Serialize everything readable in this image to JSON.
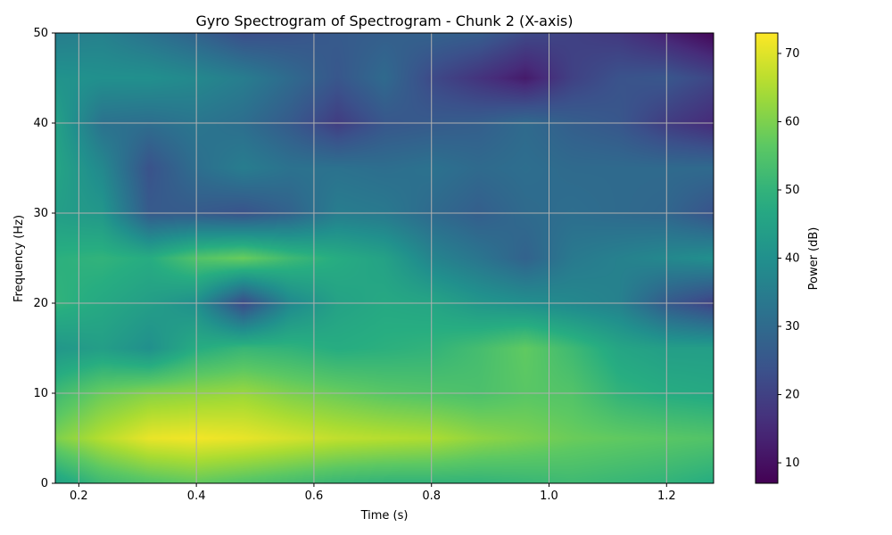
{
  "chart_data": {
    "type": "heatmap",
    "title": "Gyro Spectrogram of Spectrogram - Chunk 2 (X-axis)",
    "xlabel": "Time (s)",
    "ylabel": "Frequency (Hz)",
    "colorbar_label": "Power (dB)",
    "colormap": "viridis",
    "grid": true,
    "xlim": [
      0.16,
      1.28
    ],
    "ylim": [
      0,
      50
    ],
    "clim": [
      7,
      73
    ],
    "x_ticks": [
      0.2,
      0.4,
      0.6,
      0.8,
      1.0,
      1.2
    ],
    "x_tick_labels": [
      "0.2",
      "0.4",
      "0.6",
      "0.8",
      "1.0",
      "1.2"
    ],
    "y_ticks": [
      0,
      10,
      20,
      30,
      40,
      50
    ],
    "y_tick_labels": [
      "0",
      "10",
      "20",
      "30",
      "40",
      "50"
    ],
    "colorbar_ticks": [
      10,
      20,
      30,
      40,
      50,
      60,
      70
    ],
    "colorbar_tick_labels": [
      "10",
      "20",
      "30",
      "40",
      "50",
      "60",
      "70"
    ],
    "x": [
      0.16,
      0.24,
      0.32,
      0.4,
      0.48,
      0.56,
      0.64,
      0.72,
      0.8,
      0.88,
      0.96,
      1.04,
      1.12,
      1.2,
      1.28
    ],
    "y": [
      0,
      5,
      10,
      15,
      20,
      25,
      30,
      35,
      40,
      45,
      50
    ],
    "z": [
      [
        45,
        52,
        55,
        57,
        55,
        53,
        51,
        50,
        50,
        50,
        51,
        52,
        51,
        50,
        48
      ],
      [
        60,
        66,
        71,
        72,
        71,
        69,
        67,
        66,
        65,
        62,
        60,
        58,
        57,
        56,
        55
      ],
      [
        52,
        58,
        61,
        62,
        63,
        60,
        58,
        56,
        55,
        54,
        56,
        55,
        50,
        48,
        47
      ],
      [
        42,
        44,
        40,
        48,
        51,
        50,
        48,
        49,
        50,
        53,
        57,
        52,
        46,
        44,
        44
      ],
      [
        50,
        47,
        44,
        40,
        22,
        38,
        45,
        47,
        46,
        42,
        40,
        38,
        36,
        26,
        20
      ],
      [
        49,
        50,
        48,
        55,
        58,
        52,
        48,
        45,
        37,
        33,
        28,
        34,
        36,
        38,
        40
      ],
      [
        44,
        42,
        26,
        26,
        24,
        28,
        35,
        34,
        30,
        27,
        30,
        31,
        30,
        29,
        24
      ],
      [
        46,
        38,
        24,
        31,
        35,
        32,
        32,
        31,
        32,
        30,
        31,
        30,
        30,
        30,
        30
      ],
      [
        45,
        32,
        31,
        33,
        31,
        26,
        19,
        25,
        26,
        27,
        30,
        27,
        25,
        19,
        15
      ],
      [
        41,
        40,
        40,
        38,
        35,
        30,
        25,
        30,
        22,
        17,
        12,
        20,
        24,
        25,
        21
      ],
      [
        35,
        36,
        32,
        28,
        23,
        24,
        26,
        27,
        28,
        27,
        22,
        20,
        18,
        13,
        8
      ]
    ]
  }
}
